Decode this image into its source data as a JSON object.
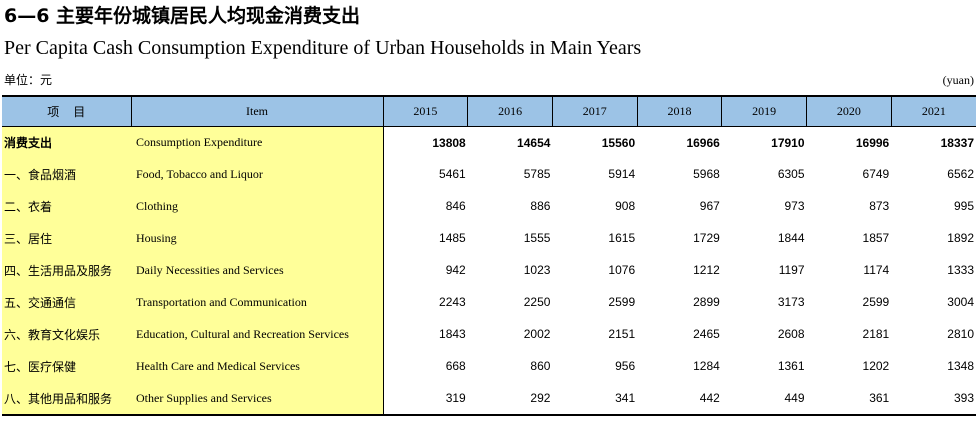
{
  "title_cn": "6—6  主要年份城镇居民人均现金消费支出",
  "title_en": "Per Capita Cash Consumption Expenditure of Urban Households in Main Years",
  "unit_cn": "单位：元",
  "unit_en": "(yuan)",
  "header": {
    "item_cn": "项目",
    "item_en": "Item",
    "years": [
      "2015",
      "2016",
      "2017",
      "2018",
      "2019",
      "2020",
      "2021"
    ]
  },
  "rows": [
    {
      "cn": "消费支出",
      "en": "Consumption Expenditure",
      "values": [
        "13808",
        "14654",
        "15560",
        "16966",
        "17910",
        "16996",
        "18337"
      ]
    },
    {
      "cn": "一、食品烟酒",
      "en": "Food, Tobacco and Liquor",
      "values": [
        "5461",
        "5785",
        "5914",
        "5968",
        "6305",
        "6749",
        "6562"
      ]
    },
    {
      "cn": "二、衣着",
      "en": "Clothing",
      "values": [
        "846",
        "886",
        "908",
        "967",
        "973",
        "873",
        "995"
      ]
    },
    {
      "cn": "三、居住",
      "en": "Housing",
      "values": [
        "1485",
        "1555",
        "1615",
        "1729",
        "1844",
        "1857",
        "1892"
      ]
    },
    {
      "cn": "四、生活用品及服务",
      "en": "Daily Necessities and Services",
      "values": [
        "942",
        "1023",
        "1076",
        "1212",
        "1197",
        "1174",
        "1333"
      ]
    },
    {
      "cn": "五、交通通信",
      "en": "Transportation and Communication",
      "values": [
        "2243",
        "2250",
        "2599",
        "2899",
        "3173",
        "2599",
        "3004"
      ]
    },
    {
      "cn": "六、教育文化娱乐",
      "en": "Education, Cultural and Recreation Services",
      "values": [
        "1843",
        "2002",
        "2151",
        "2465",
        "2608",
        "2181",
        "2810"
      ]
    },
    {
      "cn": "七、医疗保健",
      "en": "Health Care and Medical Services",
      "values": [
        "668",
        "860",
        "956",
        "1284",
        "1361",
        "1202",
        "1348"
      ]
    },
    {
      "cn": "八、其他用品和服务",
      "en": "Other Supplies and Services",
      "values": [
        "319",
        "292",
        "341",
        "442",
        "449",
        "361",
        "393"
      ]
    }
  ],
  "colors": {
    "header_bg": "#9cc3e6",
    "item_col_bg": "#ffff99"
  }
}
